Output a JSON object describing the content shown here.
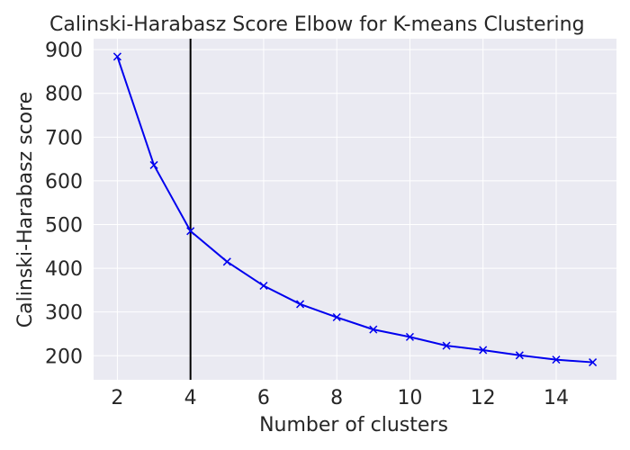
{
  "chart_data": {
    "type": "line",
    "title": "Calinski-Harabasz Score Elbow for K-means Clustering",
    "xlabel": "Number of clusters",
    "ylabel": "Calinski-Harabasz score",
    "x": [
      2,
      3,
      4,
      5,
      6,
      7,
      8,
      9,
      10,
      11,
      12,
      13,
      14,
      15
    ],
    "series": [
      {
        "values": [
          884,
          636,
          485,
          415,
          360,
          318,
          288,
          260,
          243,
          223,
          213,
          201,
          191,
          185
        ]
      }
    ],
    "xlim": [
      1.35,
      15.65
    ],
    "ylim": [
      145,
      925
    ],
    "xticks": [
      2,
      4,
      6,
      8,
      10,
      12,
      14
    ],
    "yticks": [
      200,
      300,
      400,
      500,
      600,
      700,
      800,
      900
    ],
    "vertical_line_x": 4,
    "grid": true,
    "marker": "x",
    "colors": {
      "plot_background": "#eaeaf2",
      "grid": "#ffffff",
      "series": "#0000ee",
      "vertical_line": "#000000",
      "text": "#262626"
    }
  }
}
